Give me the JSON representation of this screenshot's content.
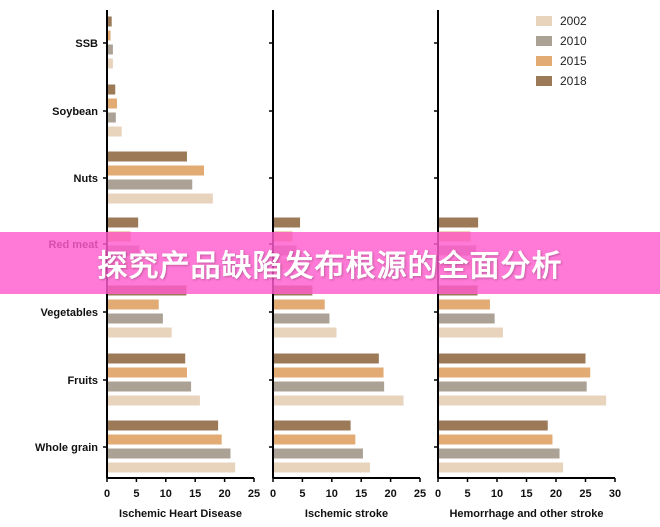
{
  "banner_text": "探究产品缺陷发布根源的全面分析",
  "colors": {
    "2002": "#e8d3bd",
    "2010": "#aba195",
    "2015": "#e2ab74",
    "2018": "#9c7a58"
  },
  "chart_data": [
    {
      "type": "bar",
      "orientation": "horizontal",
      "xlabel": "Ischemic Heart Disease",
      "xlim": [
        0,
        25
      ],
      "xticks": [
        0,
        5,
        10,
        15,
        20,
        25
      ],
      "categories": [
        "SSB",
        "Soybean",
        "Nuts",
        "Red meat",
        "Vegetables",
        "Fruits",
        "Whole grain"
      ],
      "series": [
        {
          "name": "2002",
          "values": [
            1.0,
            2.5,
            18.0,
            5.0,
            11.0,
            15.8,
            21.8
          ]
        },
        {
          "name": "2010",
          "values": [
            1.0,
            1.5,
            14.5,
            5.5,
            9.5,
            14.3,
            21.0
          ]
        },
        {
          "name": "2015",
          "values": [
            0.6,
            1.7,
            16.5,
            4.0,
            8.8,
            13.6,
            19.5
          ]
        },
        {
          "name": "2018",
          "values": [
            0.8,
            1.4,
            13.6,
            5.3,
            13.5,
            13.3,
            18.9
          ]
        }
      ]
    },
    {
      "type": "bar",
      "orientation": "horizontal",
      "xlabel": "Ischemic stroke",
      "xlim": [
        0,
        25
      ],
      "xticks": [
        0,
        5,
        10,
        15,
        20,
        25
      ],
      "categories": [
        "SSB",
        "Soybean",
        "Nuts",
        "Red meat",
        "Vegetables",
        "Fruits",
        "Whole grain"
      ],
      "series": [
        {
          "name": "2002",
          "values": [
            0,
            0,
            0,
            3.5,
            10.8,
            22.2,
            16.5
          ]
        },
        {
          "name": "2010",
          "values": [
            0,
            0,
            0,
            4.0,
            9.6,
            18.9,
            15.3
          ]
        },
        {
          "name": "2015",
          "values": [
            0,
            0,
            0,
            3.3,
            8.8,
            18.8,
            14.0
          ]
        },
        {
          "name": "2018",
          "values": [
            0,
            0,
            0,
            4.6,
            6.7,
            18.0,
            13.2
          ]
        }
      ]
    },
    {
      "type": "bar",
      "orientation": "horizontal",
      "xlabel": "Hemorrhage and other stroke",
      "xlim": [
        0,
        30
      ],
      "xticks": [
        0,
        5,
        10,
        15,
        20,
        25,
        30
      ],
      "categories": [
        "SSB",
        "Soybean",
        "Nuts",
        "Red meat",
        "Vegetables",
        "Fruits",
        "Whole grain"
      ],
      "series": [
        {
          "name": "2002",
          "values": [
            0,
            0,
            0,
            6.0,
            11.0,
            28.5,
            21.2
          ]
        },
        {
          "name": "2010",
          "values": [
            0,
            0,
            0,
            6.5,
            9.6,
            25.2,
            20.6
          ]
        },
        {
          "name": "2015",
          "values": [
            0,
            0,
            0,
            5.5,
            8.8,
            25.8,
            19.4
          ]
        },
        {
          "name": "2018",
          "values": [
            0,
            0,
            0,
            6.8,
            6.7,
            25.0,
            18.6
          ]
        }
      ]
    }
  ],
  "legend": {
    "placement": "top-right",
    "items": [
      "2002",
      "2010",
      "2015",
      "2018"
    ]
  }
}
